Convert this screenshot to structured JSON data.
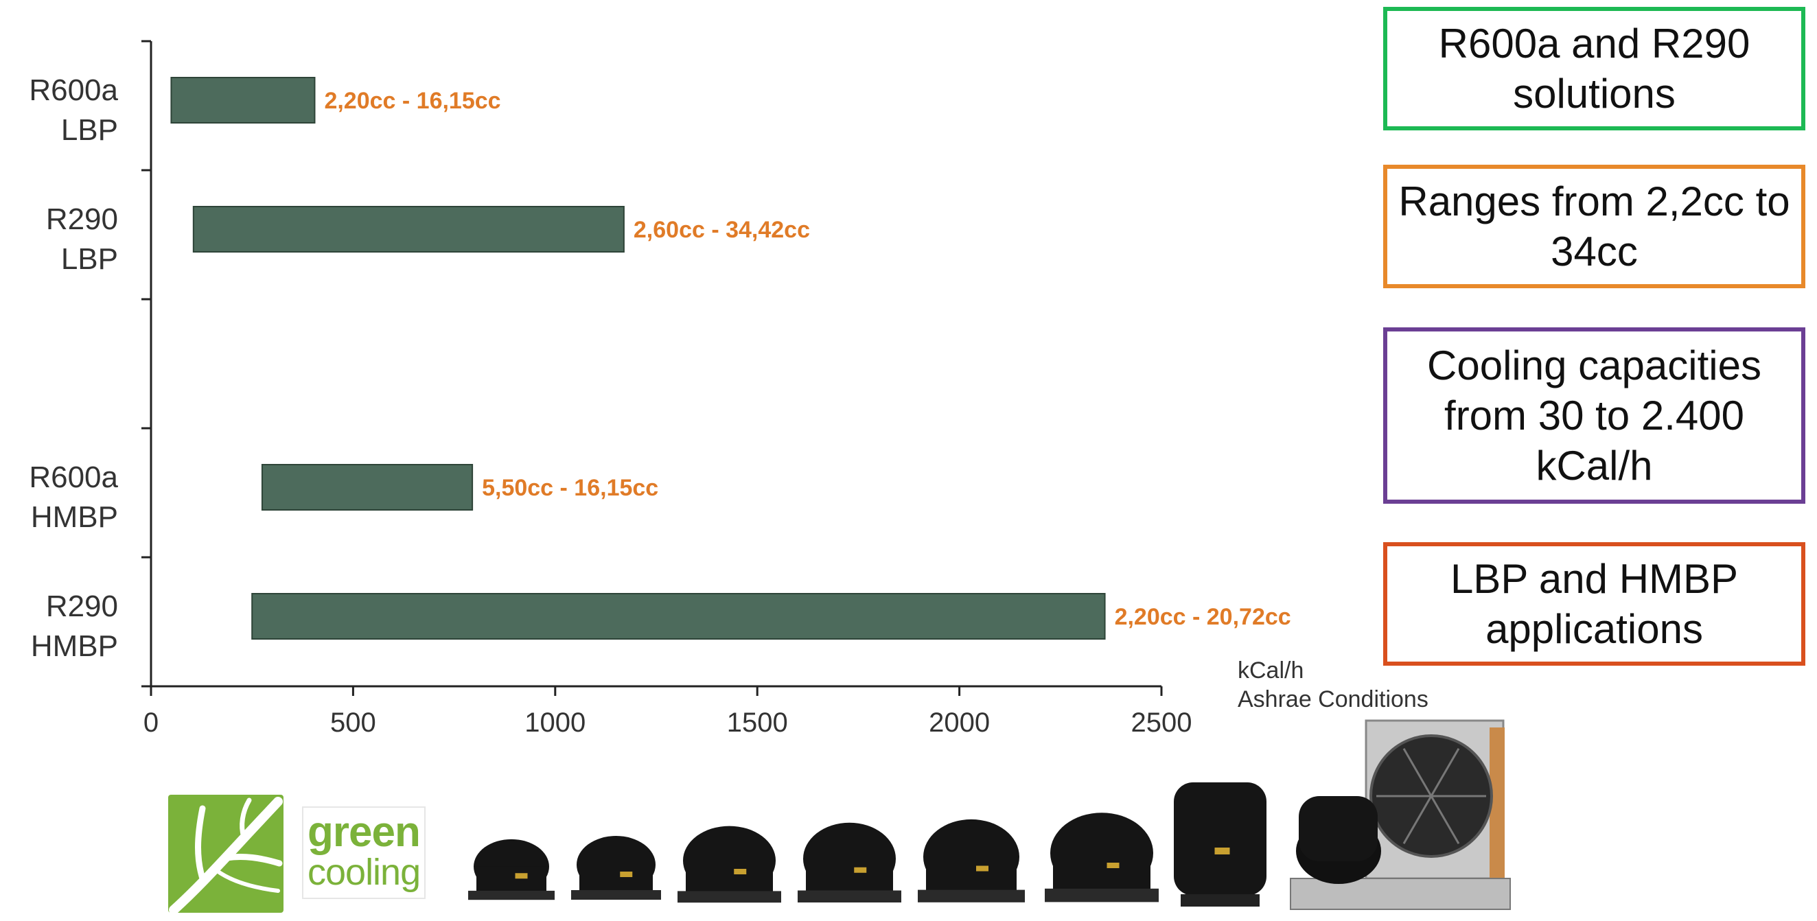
{
  "chart_data": {
    "type": "bar",
    "orientation": "horizontal",
    "categories": [
      {
        "line1": "R600a",
        "line2": "LBP"
      },
      {
        "line1": "R290",
        "line2": "LBP"
      },
      {
        "line1": "",
        "line2": ""
      },
      {
        "line1": "R600a",
        "line2": "HMBP"
      },
      {
        "line1": "R290",
        "line2": "HMBP"
      }
    ],
    "ranges": [
      {
        "start": 50,
        "end": 405,
        "label": "2,20cc - 16,15cc"
      },
      {
        "start": 105,
        "end": 1170,
        "label": "2,60cc - 34,42cc"
      },
      null,
      {
        "start": 275,
        "end": 795,
        "label": "5,50cc - 16,15cc"
      },
      {
        "start": 250,
        "end": 2360,
        "label": "2,20cc - 20,72cc"
      }
    ],
    "xticks": [
      "0",
      "500",
      "1000",
      "1500",
      "2000",
      "2500"
    ],
    "xlim": [
      0,
      2500
    ],
    "unit_lines": [
      "kCal/h",
      "Ashrae Conditions"
    ],
    "bar_color": "#4d6b5c",
    "label_color": "#e07b27",
    "grid": false
  },
  "feature_boxes": [
    {
      "text": "R600a and R290 solutions",
      "border_color": "#1db954"
    },
    {
      "text": "Ranges from 2,2cc to 34cc",
      "border_color": "#e8892a"
    },
    {
      "text": "Cooling capacities from 30 to 2.400 kCal/h",
      "border_color": "#6b3f94"
    },
    {
      "text": "LBP and HMBP applications",
      "border_color": "#d9501e"
    }
  ],
  "logo": {
    "word1": "green",
    "word2": "cooling",
    "color": "#7bb23a"
  },
  "products": [
    {
      "icon": "small-compressor-icon"
    },
    {
      "icon": "small-compressor-icon"
    },
    {
      "icon": "medium-compressor-icon"
    },
    {
      "icon": "medium-compressor-icon"
    },
    {
      "icon": "medium-compressor-icon"
    },
    {
      "icon": "medium-compressor-icon"
    },
    {
      "icon": "tall-compressor-icon"
    },
    {
      "icon": "condensing-unit-icon"
    }
  ]
}
